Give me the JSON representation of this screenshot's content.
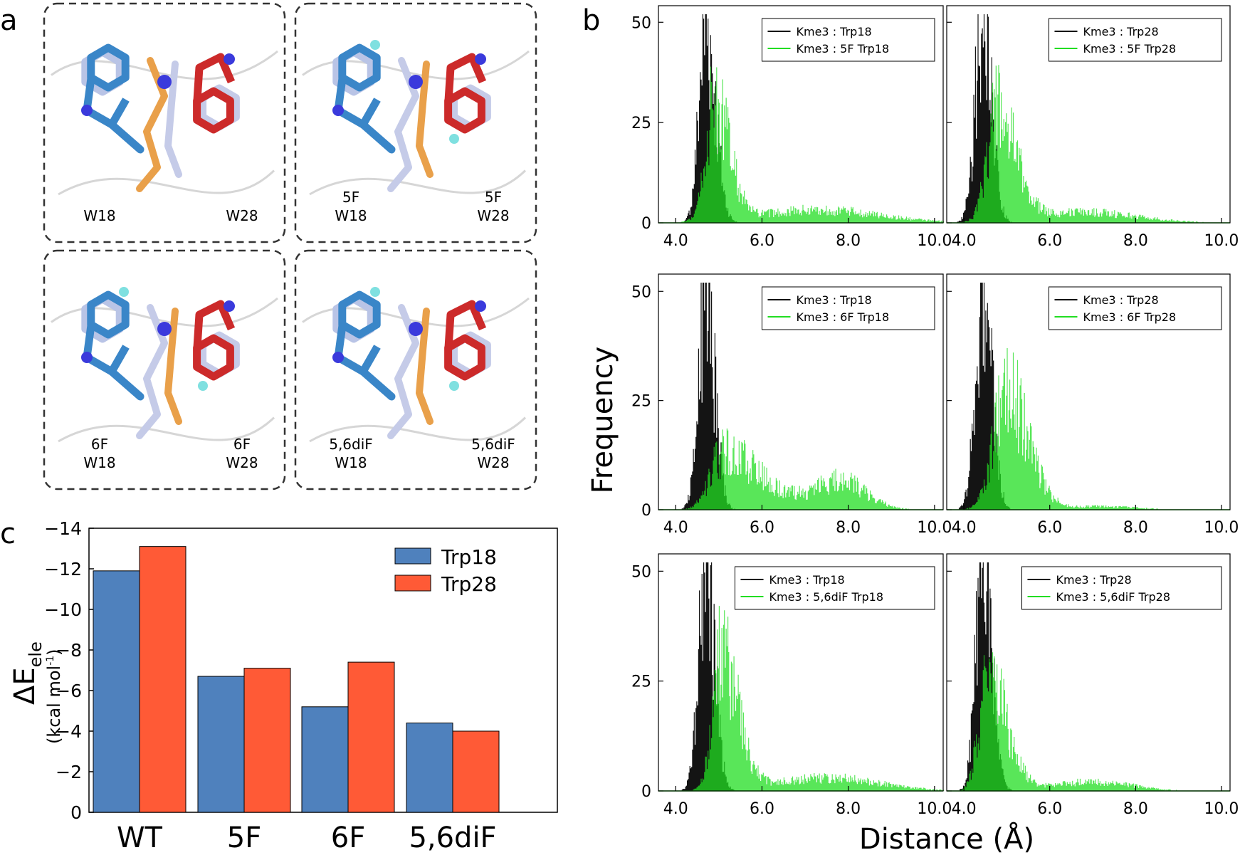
{
  "panel_labels": {
    "a": "a",
    "b": "b",
    "c": "c"
  },
  "panel_a": {
    "structures": [
      {
        "left": "W18",
        "right": "W28"
      },
      {
        "left": "5F W18",
        "right": "5F W28"
      },
      {
        "left": "6F W18",
        "right": "6F W28"
      },
      {
        "left": "5,6diF W18",
        "right": "5,6diF W28"
      }
    ],
    "colors": {
      "trp18": "#3a86c8",
      "trp28": "#cc2a2a",
      "kme3_variant": "#e9a04a",
      "kme3_wt": "#c5cbe8",
      "nitrogen": "#3a3adc",
      "fluorine": "#7fe0e0"
    }
  },
  "colors": {
    "black_series": "#000000",
    "green_series": "#22dd22",
    "bar_trp18": "#4f81bd",
    "bar_trp28": "#ff5a36"
  },
  "chart_data": [
    {
      "type": "bar",
      "panel": "c",
      "categories": [
        "WT",
        "5F",
        "6F",
        "5,6diF"
      ],
      "series": [
        {
          "name": "Trp18",
          "values": [
            -11.9,
            -6.7,
            -5.2,
            -4.4
          ]
        },
        {
          "name": "Trp28",
          "values": [
            -13.1,
            -7.1,
            -7.4,
            -4.0
          ]
        }
      ],
      "ylabel": "ΔE",
      "ylabel_sub": "ele",
      "ylabel_units": "(kcal mol",
      "ylabel_units_sup": "-1",
      "ylabel_units_close": ")",
      "ylim": [
        0,
        -14
      ],
      "yticks": [
        "0",
        "−2",
        "−4",
        "−6",
        "−8",
        "−10",
        "−12",
        "−14"
      ],
      "legend": "top-right"
    },
    {
      "type": "bar",
      "panel": "b",
      "description": "Histograms of Kme3–Trp distance",
      "xlabel": "Distance (Å)",
      "ylabel": "Frequency",
      "xlim": [
        3.6,
        10.2
      ],
      "ylim": [
        0,
        52
      ],
      "xticks": [
        "4.0",
        "6.0",
        "8.0",
        "10.0"
      ],
      "yticks": [
        "0",
        "25",
        "50"
      ],
      "subplots": [
        {
          "legend": [
            "Kme3 : Trp18",
            "Kme3 : 5F Trp18"
          ],
          "black": {
            "mode": 4.7,
            "peak": 49,
            "sl": 0.16,
            "sr": 0.22,
            "tail": 0.0
          },
          "green": {
            "mode": 4.9,
            "peak": 29,
            "sl": 0.2,
            "sr": 0.35,
            "tail": 0.2,
            "tailMean": 7.3,
            "tailSd": 1.4
          }
        },
        {
          "legend": [
            "Kme3 : Trp28",
            "Kme3 : 5F Trp28"
          ],
          "black": {
            "mode": 4.45,
            "peak": 50,
            "sl": 0.18,
            "sr": 0.2,
            "tail": 0.0
          },
          "green": {
            "mode": 4.75,
            "peak": 27,
            "sl": 0.22,
            "sr": 0.45,
            "tail": 0.18,
            "tailMean": 6.8,
            "tailSd": 1.2
          }
        },
        {
          "legend": [
            "Kme3 : Trp18",
            "Kme3 : 6F Trp18"
          ],
          "black": {
            "mode": 4.7,
            "peak": 50,
            "sl": 0.17,
            "sr": 0.2,
            "tail": 0.0
          },
          "green": {
            "mode": 5.1,
            "peak": 13,
            "sl": 0.3,
            "sr": 0.9,
            "tail": 0.9,
            "tailMean": 7.8,
            "tailSd": 0.6
          }
        },
        {
          "legend": [
            "Kme3 : Trp28",
            "Kme3 : 6F Trp28"
          ],
          "black": {
            "mode": 4.45,
            "peak": 50,
            "sl": 0.18,
            "sr": 0.2,
            "tail": 0.0
          },
          "green": {
            "mode": 5.0,
            "peak": 27,
            "sl": 0.3,
            "sr": 0.5,
            "tail": 0.05,
            "tailMean": 7.2,
            "tailSd": 0.8
          }
        },
        {
          "legend": [
            "Kme3 : Trp18",
            "Kme3 : 5,6diF Trp18"
          ],
          "black": {
            "mode": 4.7,
            "peak": 49,
            "sl": 0.17,
            "sr": 0.2,
            "tail": 0.0
          },
          "green": {
            "mode": 5.05,
            "peak": 30,
            "sl": 0.2,
            "sr": 0.4,
            "tail": 0.18,
            "tailMean": 7.5,
            "tailSd": 1.2
          }
        },
        {
          "legend": [
            "Kme3 : Trp28",
            "Kme3 : 5,6diF Trp28"
          ],
          "black": {
            "mode": 4.45,
            "peak": 50,
            "sl": 0.17,
            "sr": 0.2,
            "tail": 0.0
          },
          "green": {
            "mode": 4.55,
            "peak": 25,
            "sl": 0.2,
            "sr": 0.45,
            "tail": 0.15,
            "tailMean": 7.0,
            "tailSd": 0.9
          }
        }
      ]
    }
  ]
}
